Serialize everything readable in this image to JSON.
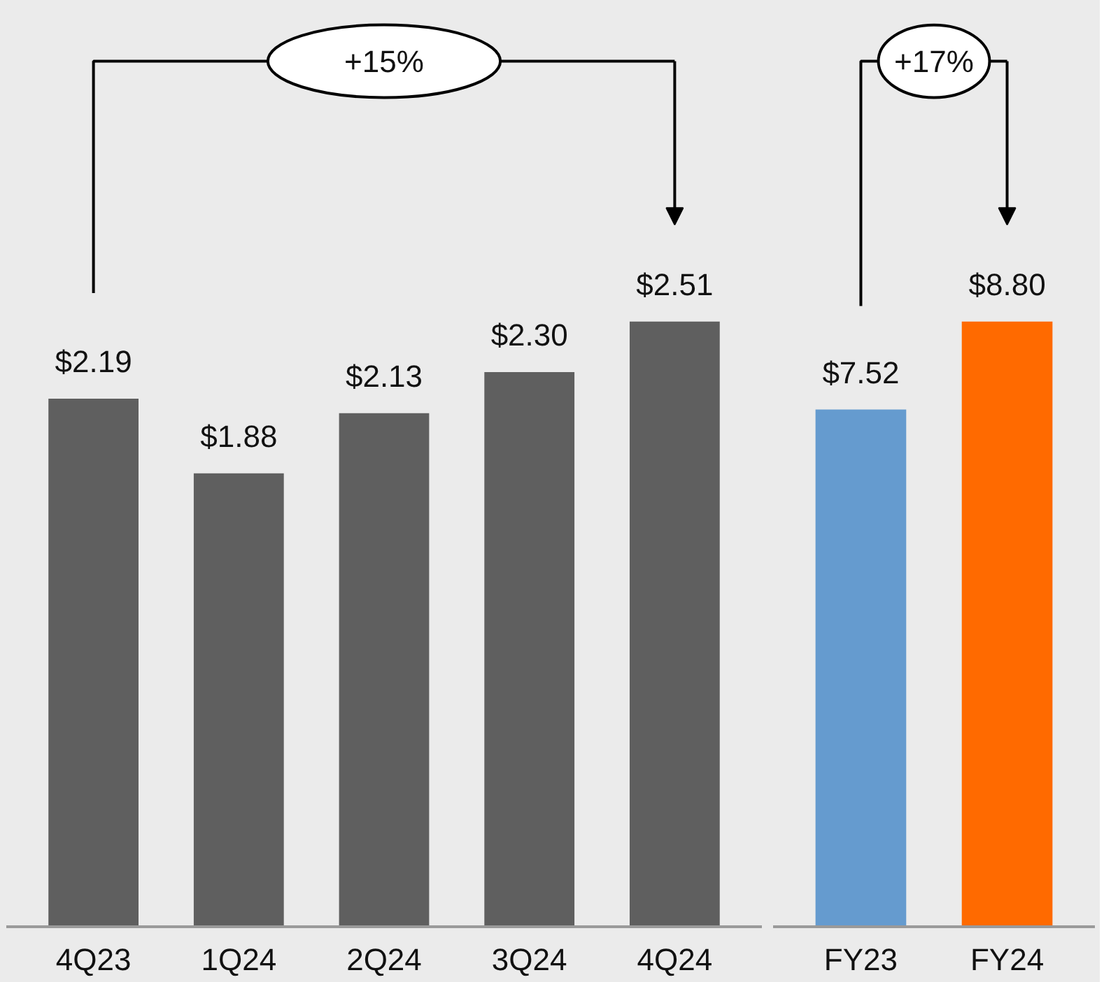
{
  "chart_data": [
    {
      "type": "bar",
      "categories": [
        "4Q23",
        "1Q24",
        "2Q24",
        "3Q24",
        "4Q24"
      ],
      "values": [
        2.19,
        1.88,
        2.13,
        2.3,
        2.51
      ],
      "colors": [
        "#5f5f5f",
        "#5f5f5f",
        "#5f5f5f",
        "#5f5f5f",
        "#5f5f5f"
      ],
      "value_labels": [
        "$2.19",
        "$1.88",
        "$2.13",
        "$2.30",
        "$2.51"
      ],
      "annotations": [
        "+15%"
      ]
    },
    {
      "type": "bar",
      "categories": [
        "FY23",
        "FY24"
      ],
      "values": [
        7.52,
        8.8
      ],
      "colors": [
        "#659bcf",
        "#ff6a00"
      ],
      "value_labels": [
        "$7.52",
        "$8.80"
      ],
      "annotations": [
        "+17%"
      ]
    }
  ]
}
